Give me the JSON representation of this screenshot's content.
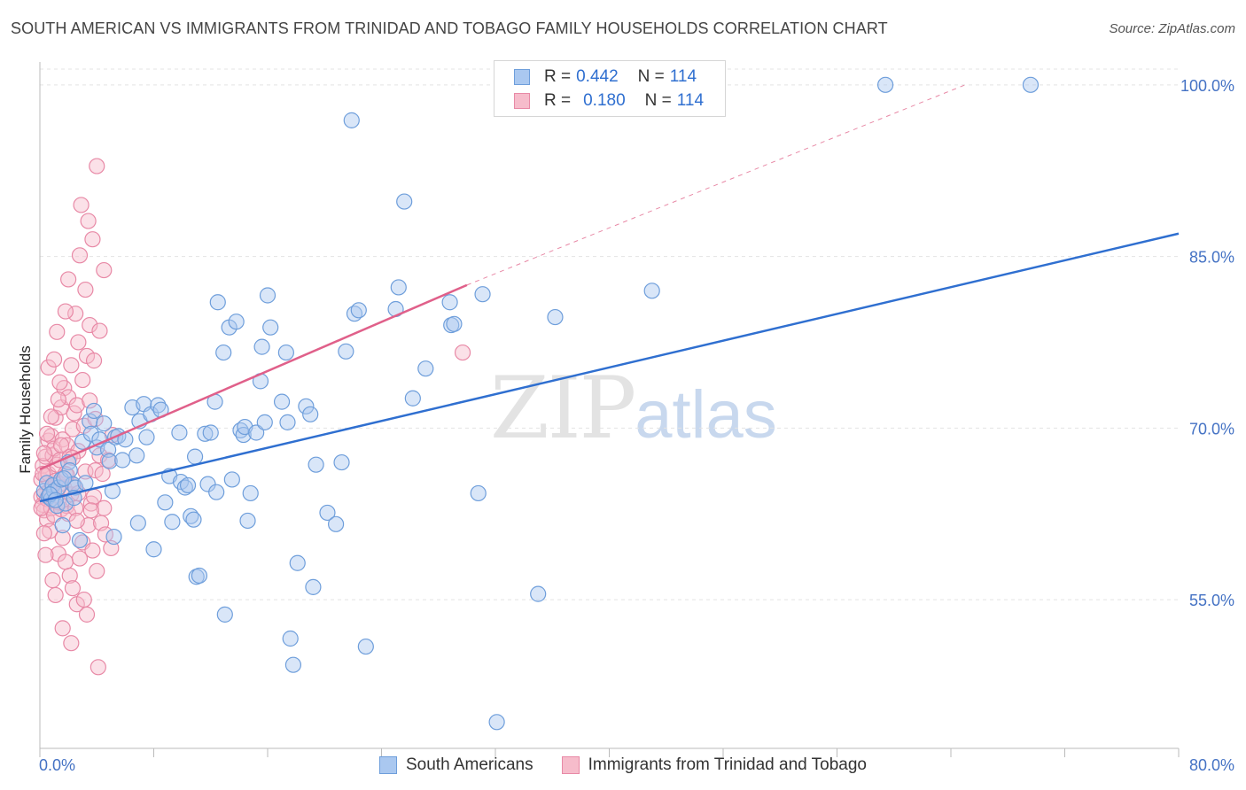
{
  "header": {
    "title": "SOUTH AMERICAN VS IMMIGRANTS FROM TRINIDAD AND TOBAGO FAMILY HOUSEHOLDS CORRELATION CHART",
    "source": "Source: ZipAtlas.com"
  },
  "watermark": {
    "zip": "ZIP",
    "atlas": "atlas"
  },
  "legend": {
    "rows": [
      {
        "r_label": "R =",
        "r_value": "0.442",
        "n_label": "N =",
        "n_value": "114"
      },
      {
        "r_label": "R =",
        "r_value": "0.180",
        "n_label": "N =",
        "n_value": "114"
      }
    ]
  },
  "bottom_legend": {
    "blue_label": "South Americans",
    "pink_label": "Immigrants from Trinidad and Tobago"
  },
  "colors": {
    "blue_fill": "#aac8f0",
    "blue_stroke": "#6e9edb",
    "blue_line": "#2f6fd0",
    "pink_fill": "#f6bccb",
    "pink_stroke": "#e889a6",
    "pink_line": "#e0608a",
    "grid": "#e3e3e3"
  },
  "chart_data": {
    "type": "scatter",
    "title": "SOUTH AMERICAN VS IMMIGRANTS FROM TRINIDAD AND TOBAGO FAMILY HOUSEHOLDS CORRELATION CHART",
    "xlabel": "",
    "ylabel": "Family Households",
    "xlim": [
      0,
      80
    ],
    "ylim": [
      42,
      102
    ],
    "x_tick_labels": [
      "0.0%",
      "80.0%"
    ],
    "y_ticks": [
      55,
      70,
      85,
      100
    ],
    "y_tick_labels": [
      "55.0%",
      "70.0%",
      "85.0%",
      "100.0%"
    ],
    "grid": true,
    "legend_position": "top-center",
    "series": [
      {
        "name": "South Americans",
        "r": 0.442,
        "n": 114,
        "trend": {
          "x": [
            0,
            80
          ],
          "y": [
            63.6,
            87.0
          ]
        },
        "points": [
          [
            0.3,
            64.5
          ],
          [
            0.5,
            65.2
          ],
          [
            0.6,
            64.0
          ],
          [
            0.8,
            63.8
          ],
          [
            0.9,
            65.0
          ],
          [
            1.0,
            64.5
          ],
          [
            1.2,
            63.2
          ],
          [
            1.3,
            64.8
          ],
          [
            1.5,
            65.5
          ],
          [
            1.6,
            61.5
          ],
          [
            1.8,
            63.4
          ],
          [
            2.0,
            67.0
          ],
          [
            2.1,
            66.3
          ],
          [
            2.3,
            65.1
          ],
          [
            2.5,
            64.8
          ],
          [
            2.8,
            60.2
          ],
          [
            3.0,
            68.8
          ],
          [
            3.2,
            65.2
          ],
          [
            3.5,
            70.6
          ],
          [
            3.6,
            69.5
          ],
          [
            3.8,
            71.5
          ],
          [
            4.0,
            68.3
          ],
          [
            4.2,
            69.0
          ],
          [
            4.5,
            70.4
          ],
          [
            4.8,
            68.1
          ],
          [
            4.9,
            67.1
          ],
          [
            5.1,
            64.5
          ],
          [
            5.2,
            60.5
          ],
          [
            5.3,
            69.2
          ],
          [
            5.5,
            69.3
          ],
          [
            5.8,
            67.2
          ],
          [
            6.0,
            69.0
          ],
          [
            6.5,
            71.8
          ],
          [
            6.8,
            67.6
          ],
          [
            6.9,
            61.7
          ],
          [
            7.0,
            70.6
          ],
          [
            7.3,
            72.1
          ],
          [
            7.5,
            69.2
          ],
          [
            7.8,
            71.2
          ],
          [
            8.0,
            59.4
          ],
          [
            8.3,
            72.0
          ],
          [
            8.5,
            71.6
          ],
          [
            8.8,
            63.5
          ],
          [
            9.1,
            65.8
          ],
          [
            9.3,
            61.8
          ],
          [
            9.8,
            69.6
          ],
          [
            9.9,
            65.3
          ],
          [
            10.2,
            64.8
          ],
          [
            10.4,
            65.0
          ],
          [
            10.6,
            62.3
          ],
          [
            10.8,
            62.0
          ],
          [
            10.9,
            67.5
          ],
          [
            11.0,
            57.0
          ],
          [
            11.2,
            57.1
          ],
          [
            11.6,
            69.5
          ],
          [
            11.8,
            65.1
          ],
          [
            12.0,
            69.6
          ],
          [
            12.3,
            72.3
          ],
          [
            12.4,
            64.4
          ],
          [
            12.5,
            81.0
          ],
          [
            12.9,
            76.6
          ],
          [
            13.0,
            53.7
          ],
          [
            13.3,
            78.8
          ],
          [
            13.5,
            65.5
          ],
          [
            13.8,
            79.3
          ],
          [
            14.1,
            69.8
          ],
          [
            14.3,
            69.4
          ],
          [
            14.4,
            70.1
          ],
          [
            14.6,
            61.9
          ],
          [
            14.8,
            64.3
          ],
          [
            15.2,
            69.6
          ],
          [
            15.5,
            74.1
          ],
          [
            15.6,
            77.1
          ],
          [
            15.8,
            70.5
          ],
          [
            16.0,
            81.6
          ],
          [
            16.2,
            78.8
          ],
          [
            17.0,
            72.3
          ],
          [
            17.3,
            76.6
          ],
          [
            17.4,
            70.5
          ],
          [
            17.6,
            51.6
          ],
          [
            17.8,
            49.3
          ],
          [
            18.1,
            58.2
          ],
          [
            18.7,
            71.9
          ],
          [
            19.0,
            71.2
          ],
          [
            19.2,
            56.1
          ],
          [
            19.4,
            66.8
          ],
          [
            20.2,
            62.6
          ],
          [
            20.8,
            61.6
          ],
          [
            21.2,
            67.0
          ],
          [
            21.5,
            76.7
          ],
          [
            21.9,
            96.9
          ],
          [
            22.1,
            80.0
          ],
          [
            22.4,
            80.3
          ],
          [
            22.9,
            50.9
          ],
          [
            25.0,
            80.4
          ],
          [
            25.2,
            82.3
          ],
          [
            25.6,
            89.8
          ],
          [
            26.2,
            72.6
          ],
          [
            27.1,
            75.2
          ],
          [
            28.8,
            81.0
          ],
          [
            28.9,
            79.0
          ],
          [
            29.1,
            79.1
          ],
          [
            30.8,
            64.3
          ],
          [
            31.1,
            81.7
          ],
          [
            32.1,
            44.3
          ],
          [
            35.0,
            55.5
          ],
          [
            36.2,
            79.7
          ],
          [
            43.0,
            82.0
          ],
          [
            59.4,
            100.0
          ],
          [
            69.6,
            100.0
          ],
          [
            0.7,
            64.2
          ],
          [
            1.1,
            63.7
          ],
          [
            1.7,
            65.6
          ],
          [
            2.4,
            63.9
          ]
        ]
      },
      {
        "name": "Immigrants from Trinidad and Tobago",
        "r": 0.18,
        "n": 114,
        "trend": {
          "x": [
            0,
            30
          ],
          "y": [
            66.4,
            82.5
          ]
        },
        "trend_extension": {
          "x": [
            30,
            65
          ],
          "y": [
            82.5,
            100.0
          ]
        },
        "points": [
          [
            0.1,
            64.0
          ],
          [
            0.1,
            65.5
          ],
          [
            0.2,
            63.3
          ],
          [
            0.2,
            66.7
          ],
          [
            0.3,
            62.8
          ],
          [
            0.3,
            64.2
          ],
          [
            0.4,
            65.8
          ],
          [
            0.4,
            67.5
          ],
          [
            0.5,
            63.8
          ],
          [
            0.5,
            62.0
          ],
          [
            0.6,
            66.0
          ],
          [
            0.6,
            68.9
          ],
          [
            0.7,
            64.6
          ],
          [
            0.7,
            61.0
          ],
          [
            0.8,
            63.0
          ],
          [
            0.8,
            69.3
          ],
          [
            0.9,
            67.6
          ],
          [
            0.9,
            64.9
          ],
          [
            1.0,
            62.4
          ],
          [
            1.0,
            68.2
          ],
          [
            1.1,
            65.4
          ],
          [
            1.1,
            70.9
          ],
          [
            1.2,
            64.1
          ],
          [
            1.2,
            66.8
          ],
          [
            1.3,
            63.5
          ],
          [
            1.3,
            59.0
          ],
          [
            1.4,
            67.2
          ],
          [
            1.4,
            65.1
          ],
          [
            1.5,
            62.9
          ],
          [
            1.5,
            71.8
          ],
          [
            1.6,
            69.0
          ],
          [
            1.6,
            60.4
          ],
          [
            1.7,
            64.8
          ],
          [
            1.7,
            73.5
          ],
          [
            1.8,
            66.0
          ],
          [
            1.8,
            58.3
          ],
          [
            1.9,
            63.2
          ],
          [
            1.9,
            68.5
          ],
          [
            2.0,
            62.5
          ],
          [
            2.0,
            72.7
          ],
          [
            2.1,
            67.5
          ],
          [
            2.1,
            57.1
          ],
          [
            2.2,
            64.2
          ],
          [
            2.2,
            75.5
          ],
          [
            2.3,
            69.9
          ],
          [
            2.3,
            56.0
          ],
          [
            2.4,
            71.3
          ],
          [
            2.4,
            65.0
          ],
          [
            2.5,
            63.0
          ],
          [
            2.5,
            80.0
          ],
          [
            2.6,
            72.0
          ],
          [
            2.6,
            54.6
          ],
          [
            2.7,
            68.0
          ],
          [
            2.7,
            77.5
          ],
          [
            2.8,
            58.6
          ],
          [
            2.8,
            85.1
          ],
          [
            2.9,
            89.5
          ],
          [
            3.0,
            60.0
          ],
          [
            3.0,
            74.2
          ],
          [
            3.1,
            70.2
          ],
          [
            3.1,
            55.0
          ],
          [
            3.2,
            66.2
          ],
          [
            3.2,
            82.1
          ],
          [
            3.3,
            76.3
          ],
          [
            3.3,
            53.7
          ],
          [
            3.4,
            61.5
          ],
          [
            3.4,
            88.1
          ],
          [
            3.5,
            72.4
          ],
          [
            3.5,
            79.0
          ],
          [
            3.6,
            63.4
          ],
          [
            3.7,
            59.3
          ],
          [
            3.7,
            86.5
          ],
          [
            3.8,
            64.0
          ],
          [
            3.8,
            75.9
          ],
          [
            3.9,
            66.3
          ],
          [
            4.0,
            92.9
          ],
          [
            4.0,
            57.5
          ],
          [
            4.1,
            49.1
          ],
          [
            4.2,
            67.6
          ],
          [
            4.2,
            78.5
          ],
          [
            4.3,
            61.7
          ],
          [
            4.5,
            83.8
          ],
          [
            4.5,
            63.0
          ],
          [
            4.6,
            60.7
          ],
          [
            4.8,
            67.2
          ],
          [
            5.0,
            59.5
          ],
          [
            5.1,
            69.4
          ],
          [
            0.6,
            75.3
          ],
          [
            1.0,
            76.0
          ],
          [
            1.2,
            78.4
          ],
          [
            1.4,
            74.0
          ],
          [
            1.8,
            80.2
          ],
          [
            2.0,
            83.0
          ],
          [
            0.3,
            60.8
          ],
          [
            0.4,
            58.9
          ],
          [
            0.9,
            56.7
          ],
          [
            1.1,
            55.4
          ],
          [
            1.6,
            52.5
          ],
          [
            2.2,
            51.2
          ],
          [
            2.6,
            61.9
          ],
          [
            3.6,
            62.8
          ],
          [
            0.2,
            66.0
          ],
          [
            0.5,
            69.5
          ],
          [
            0.8,
            71.0
          ],
          [
            1.3,
            72.5
          ],
          [
            1.5,
            68.5
          ],
          [
            1.9,
            65.9
          ],
          [
            2.3,
            67.4
          ],
          [
            2.7,
            64.3
          ],
          [
            3.9,
            70.8
          ],
          [
            4.4,
            66.0
          ],
          [
            0.1,
            63.0
          ],
          [
            0.3,
            67.8
          ],
          [
            29.7,
            76.6
          ]
        ]
      }
    ]
  }
}
